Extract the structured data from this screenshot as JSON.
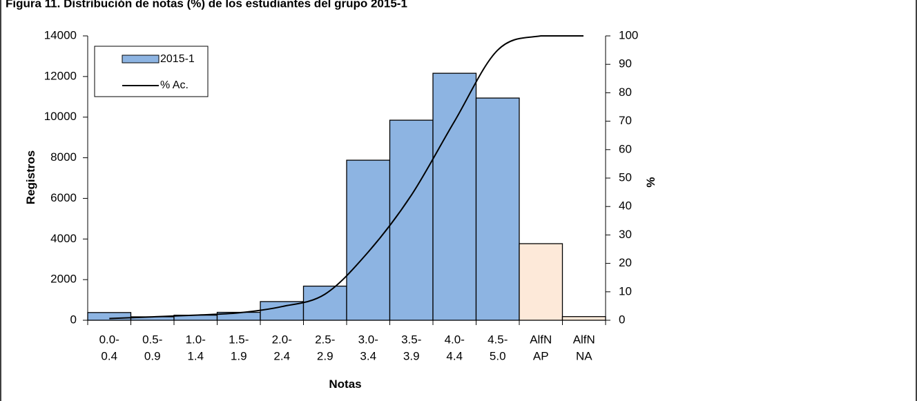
{
  "caption": "Figura 11. Distribución de notas (%) de los estudiantes del grupo 2015-1",
  "chart_data": {
    "type": "bar",
    "categories": [
      [
        "0.0-",
        "0.4"
      ],
      [
        "0.5-",
        "0.9"
      ],
      [
        "1.0-",
        "1.4"
      ],
      [
        "1.5-",
        "1.9"
      ],
      [
        "2.0-",
        "2.4"
      ],
      [
        "2.5-",
        "2.9"
      ],
      [
        "3.0-",
        "3.4"
      ],
      [
        "3.5-",
        "3.9"
      ],
      [
        "4.0-",
        "4.4"
      ],
      [
        "4.5-",
        "5.0"
      ],
      [
        "AlfN",
        "AP"
      ],
      [
        "AlfN",
        "NA"
      ]
    ],
    "series": [
      {
        "name": "2015-1",
        "kind": "bar",
        "values": [
          380,
          170,
          250,
          390,
          920,
          1680,
          7880,
          9850,
          12160,
          10940,
          3770,
          180
        ]
      },
      {
        "name": "% Ac.",
        "kind": "line",
        "axis": "right",
        "values": [
          0.6,
          1.2,
          1.8,
          2.6,
          4.8,
          9.2,
          24,
          44,
          70,
          95,
          100,
          100
        ]
      }
    ],
    "xlabel": "Notas",
    "ylabel": "Registros",
    "y2label": "%",
    "ylim": [
      0,
      14000
    ],
    "yticks": [
      0,
      2000,
      4000,
      6000,
      8000,
      10000,
      12000,
      14000
    ],
    "y2lim": [
      0,
      100
    ],
    "y2ticks": [
      0,
      10,
      20,
      30,
      40,
      50,
      60,
      70,
      80,
      90,
      100
    ],
    "colors": {
      "bar": "#8DB4E2",
      "bar_alt": "#FDE9D9",
      "line": "#000000"
    },
    "legend": "top-left"
  }
}
